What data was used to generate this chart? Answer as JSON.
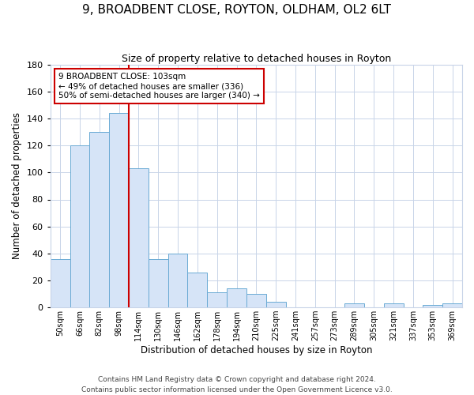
{
  "title": "9, BROADBENT CLOSE, ROYTON, OLDHAM, OL2 6LT",
  "subtitle": "Size of property relative to detached houses in Royton",
  "xlabel": "Distribution of detached houses by size in Royton",
  "ylabel": "Number of detached properties",
  "bar_labels": [
    "50sqm",
    "66sqm",
    "82sqm",
    "98sqm",
    "114sqm",
    "130sqm",
    "146sqm",
    "162sqm",
    "178sqm",
    "194sqm",
    "210sqm",
    "225sqm",
    "241sqm",
    "257sqm",
    "273sqm",
    "289sqm",
    "305sqm",
    "321sqm",
    "337sqm",
    "353sqm",
    "369sqm"
  ],
  "bar_values": [
    36,
    120,
    130,
    144,
    103,
    36,
    40,
    26,
    11,
    14,
    10,
    4,
    0,
    0,
    0,
    3,
    0,
    3,
    0,
    2,
    3
  ],
  "bar_color": "#d6e4f7",
  "bar_edge_color": "#6aaad4",
  "vline_color": "#cc0000",
  "ylim": [
    0,
    180
  ],
  "yticks": [
    0,
    20,
    40,
    60,
    80,
    100,
    120,
    140,
    160,
    180
  ],
  "annotation_title": "9 BROADBENT CLOSE: 103sqm",
  "annotation_line1": "← 49% of detached houses are smaller (336)",
  "annotation_line2": "50% of semi-detached houses are larger (340) →",
  "annotation_box_color": "#ffffff",
  "annotation_box_edge": "#cc0000",
  "footer1": "Contains HM Land Registry data © Crown copyright and database right 2024.",
  "footer2": "Contains public sector information licensed under the Open Government Licence v3.0.",
  "bg_color": "#ffffff",
  "grid_color": "#c8d4e8"
}
